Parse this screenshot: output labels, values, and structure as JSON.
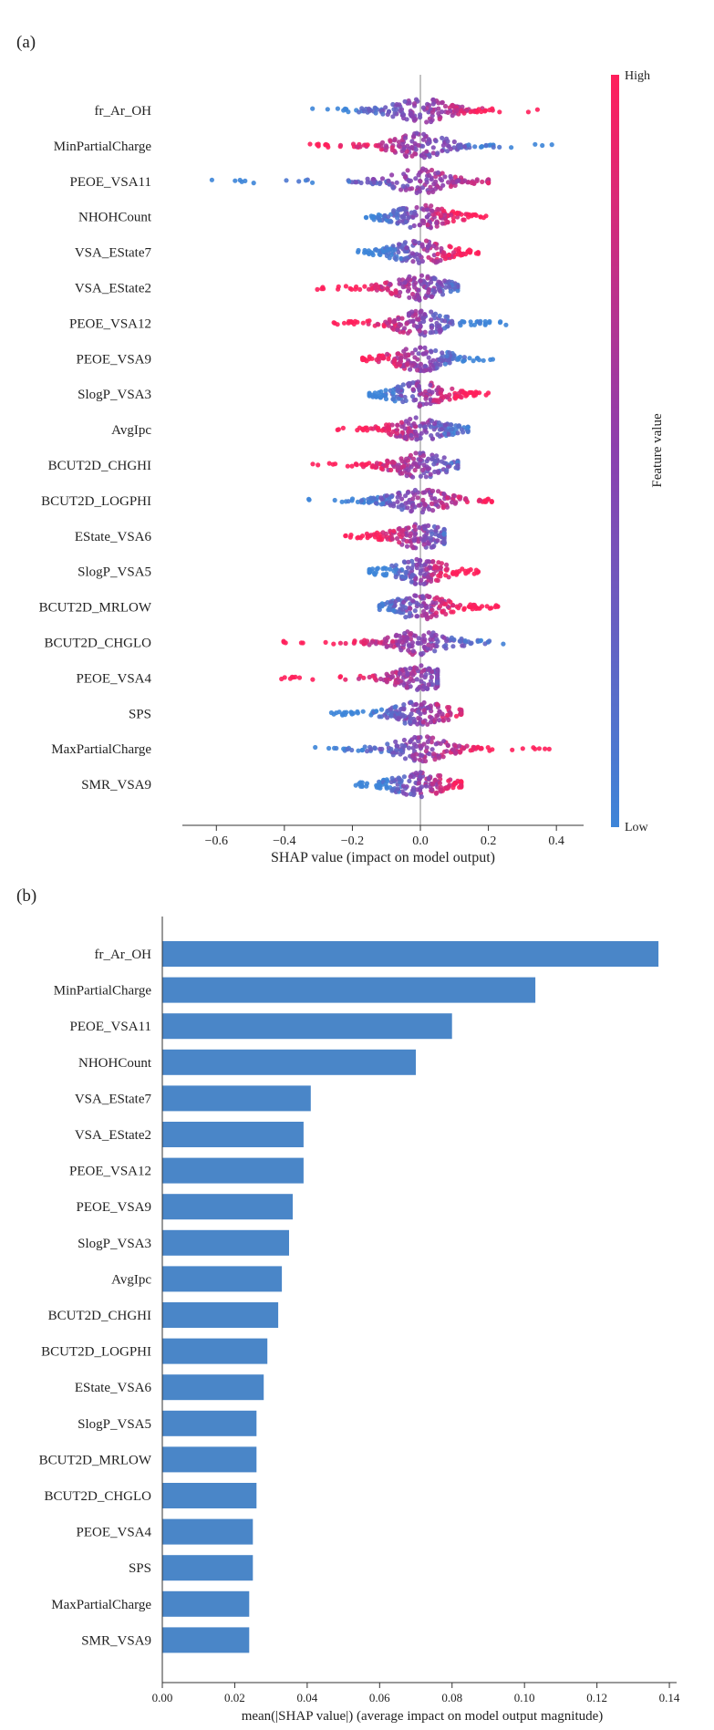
{
  "panel_a_label": "(a)",
  "panel_b_label": "(b)",
  "colors": {
    "low": "#3d85d8",
    "mid": "#8b3fae",
    "high": "#ff1f5b",
    "bar": "#4a86c8",
    "axis": "#333333",
    "zero_line": "#999999"
  },
  "chart_data": [
    {
      "type": "scatter",
      "subtype": "shap-beeswarm",
      "title": "",
      "xlabel": "SHAP value (impact on model output)",
      "ylabel": "",
      "xlim": [
        -0.7,
        0.48
      ],
      "xticks": [
        -0.6,
        -0.4,
        -0.2,
        0.0,
        0.2,
        0.4
      ],
      "xtick_labels": [
        "−0.6",
        "−0.4",
        "−0.2",
        "0.0",
        "0.2",
        "0.4"
      ],
      "features": [
        "fr_Ar_OH",
        "MinPartialCharge",
        "PEOE_VSA11",
        "NHOHCount",
        "VSA_EState7",
        "VSA_EState2",
        "PEOE_VSA12",
        "PEOE_VSA9",
        "SlogP_VSA3",
        "AvgIpc",
        "BCUT2D_CHGHI",
        "BCUT2D_LOGPHI",
        "EState_VSA6",
        "SlogP_VSA5",
        "BCUT2D_MRLOW",
        "BCUT2D_CHGLO",
        "PEOE_VSA4",
        "SPS",
        "MaxPartialCharge",
        "SMR_VSA9"
      ],
      "ranges": [
        [
          -0.33,
          0.37
        ],
        [
          -0.33,
          0.4
        ],
        [
          -0.62,
          0.2
        ],
        [
          -0.16,
          0.21
        ],
        [
          -0.19,
          0.17
        ],
        [
          -0.31,
          0.11
        ],
        [
          -0.28,
          0.26
        ],
        [
          -0.17,
          0.23
        ],
        [
          -0.15,
          0.2
        ],
        [
          -0.25,
          0.14
        ],
        [
          -0.32,
          0.11
        ],
        [
          -0.33,
          0.21
        ],
        [
          -0.23,
          0.07
        ],
        [
          -0.15,
          0.17
        ],
        [
          -0.12,
          0.23
        ],
        [
          -0.43,
          0.27
        ],
        [
          -0.43,
          0.05
        ],
        [
          -0.28,
          0.12
        ],
        [
          -0.33,
          0.38
        ],
        [
          -0.19,
          0.12
        ]
      ],
      "colorbar": {
        "label": "Feature value",
        "high": "High",
        "low": "Low"
      }
    },
    {
      "type": "bar",
      "orientation": "horizontal",
      "title": "",
      "xlabel": "mean(|SHAP value|) (average impact on model output magnitude)",
      "ylabel": "",
      "xlim": [
        0,
        0.142
      ],
      "xticks": [
        0.0,
        0.02,
        0.04,
        0.06,
        0.08,
        0.1,
        0.12,
        0.14
      ],
      "xtick_labels": [
        "0.00",
        "0.02",
        "0.04",
        "0.06",
        "0.08",
        "0.10",
        "0.12",
        "0.14"
      ],
      "categories": [
        "fr_Ar_OH",
        "MinPartialCharge",
        "PEOE_VSA11",
        "NHOHCount",
        "VSA_EState7",
        "VSA_EState2",
        "PEOE_VSA12",
        "PEOE_VSA9",
        "SlogP_VSA3",
        "AvgIpc",
        "BCUT2D_CHGHI",
        "BCUT2D_LOGPHI",
        "EState_VSA6",
        "SlogP_VSA5",
        "BCUT2D_MRLOW",
        "BCUT2D_CHGLO",
        "PEOE_VSA4",
        "SPS",
        "MaxPartialCharge",
        "SMR_VSA9"
      ],
      "values": [
        0.137,
        0.103,
        0.08,
        0.07,
        0.041,
        0.039,
        0.039,
        0.036,
        0.035,
        0.033,
        0.032,
        0.029,
        0.028,
        0.026,
        0.026,
        0.026,
        0.025,
        0.025,
        0.024,
        0.024
      ]
    }
  ]
}
